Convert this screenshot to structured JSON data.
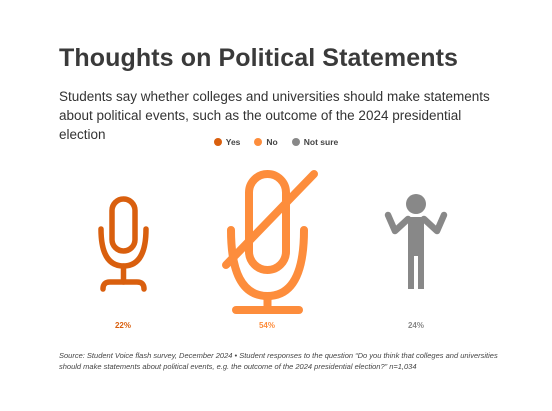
{
  "chart_data": {
    "type": "pictogram",
    "title": "Thoughts on Political Statements",
    "subtitle": "Students say whether colleges and universities should make statements about political events, such as the outcome of the 2024 presidential election",
    "categories": [
      "Yes",
      "No",
      "Not sure"
    ],
    "values": [
      22,
      54,
      24
    ],
    "value_labels": [
      "22%",
      "54%",
      "24%"
    ],
    "unit": "%",
    "colors": [
      "#d95f0e",
      "#fd8d3c",
      "#888888"
    ],
    "icons": [
      "microphone-icon",
      "crossed-microphone-icon",
      "shrugging-person-icon"
    ],
    "legend_position": "top-center",
    "source": "Source: Student Voice flash survey, December 2024 • Student responses to the question “Do you think that colleges and universities should make statements about political events, e.g. the outcome of the 2024 presidential election?” n=1,034"
  }
}
